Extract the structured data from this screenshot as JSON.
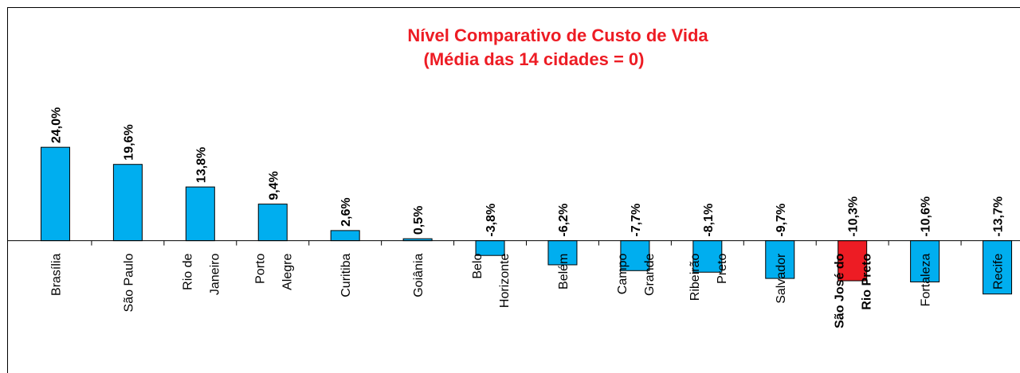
{
  "chart_data": {
    "type": "bar",
    "title": "Nível Comparativo de Custo de Vida",
    "subtitle": "(Média das 14 cidades = 0)",
    "categories": [
      "Brasília",
      "São Paulo",
      "Rio de\nJaneiro",
      "Porto\nAlegre",
      "Curitiba",
      "Goiânia",
      "Belo\nHorizonte",
      "Belém",
      "Campo\nGrande",
      "Ribeirão\nPreto",
      "Salvador",
      "São José do\nRio Preto",
      "Fortaleza",
      "Recife"
    ],
    "values": [
      24.0,
      19.6,
      13.8,
      9.4,
      2.6,
      0.5,
      -3.8,
      -6.2,
      -7.7,
      -8.1,
      -9.7,
      -10.3,
      -10.6,
      -13.7
    ],
    "value_labels": [
      "24,0%",
      "19,6%",
      "13,8%",
      "9,4%",
      "2,6%",
      "0,5%",
      "-3,8%",
      "-6,2%",
      "-7,7%",
      "-8,1%",
      "-9,7%",
      "-10,3%",
      "-10,6%",
      "-13,7%"
    ],
    "colors": [
      "#00aeef",
      "#00aeef",
      "#00aeef",
      "#00aeef",
      "#00aeef",
      "#00aeef",
      "#00aeef",
      "#00aeef",
      "#00aeef",
      "#00aeef",
      "#00aeef",
      "#ed1c24",
      "#00aeef",
      "#00aeef"
    ],
    "ylim": [
      -34,
      60
    ]
  }
}
